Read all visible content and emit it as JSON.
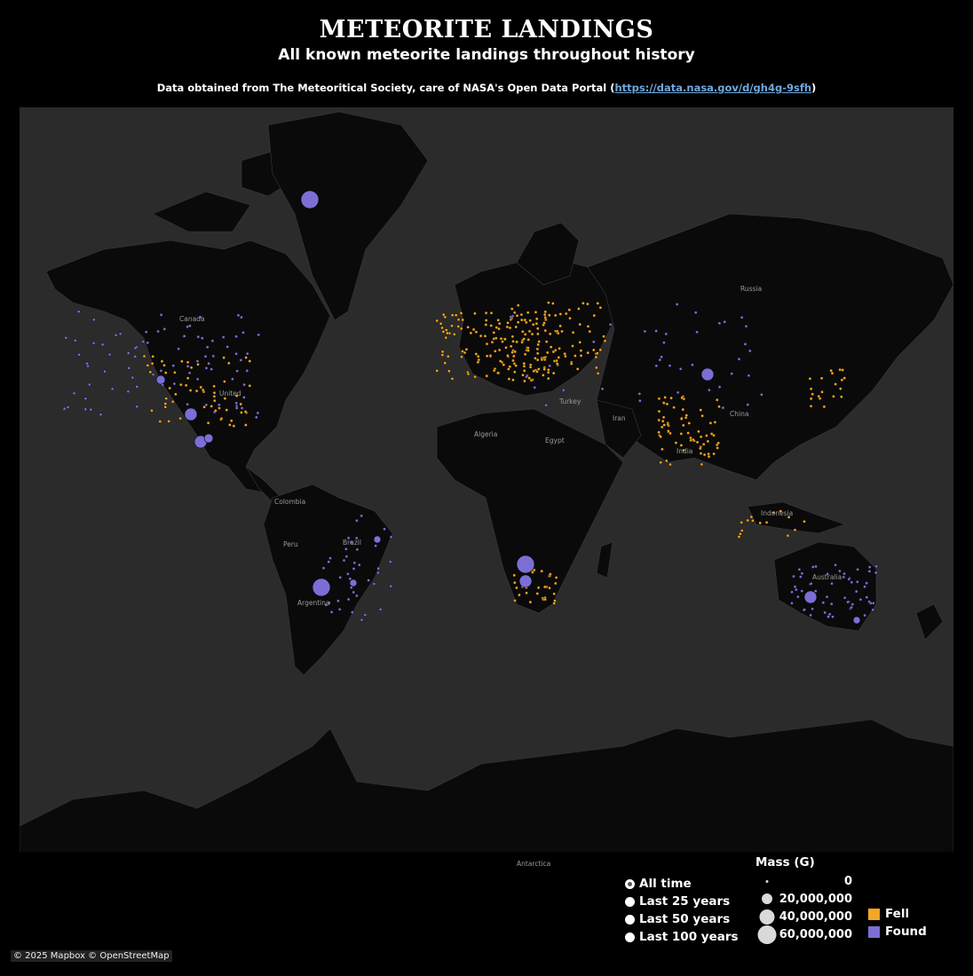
{
  "header": {
    "title": "METEORITE LANDINGS",
    "subtitle": "All known meteorite landings throughout history",
    "source_prefix": "Data obtained from The Meteoritical Society, care of NASA's Open Data Portal (",
    "source_link": "https://data.nasa.gov/d/gh4g-9sfh",
    "source_suffix": ")"
  },
  "map": {
    "labels": {
      "canada": "Canada",
      "russia": "Russia",
      "united": "United",
      "china": "China",
      "iran": "Iran",
      "turkey": "Turkey",
      "algeria": "Algeria",
      "egypt": "Egypt",
      "india": "India",
      "colombia": "Colombia",
      "peru": "Peru",
      "brazil": "Brazil",
      "argentina": "Argentina",
      "indonesia": "Indonesia",
      "australia": "Australia",
      "antarctica": "Antarctica"
    },
    "colors": {
      "fell": "#f5a623",
      "found": "#7b6fd6",
      "land": "#0a0a0a",
      "ocean": "#2b2b2b",
      "ice": "#000000"
    }
  },
  "filters": {
    "options": [
      "All time",
      "Last 25 years",
      "Last 50 years",
      "Last 100 years"
    ],
    "selected": "All time"
  },
  "legend": {
    "mass_title": "Mass (G)",
    "mass_values": [
      "0",
      "20,000,000",
      "40,000,000",
      "60,000,000"
    ],
    "categories": [
      {
        "label": "Fell",
        "color": "#f5a623"
      },
      {
        "label": "Found",
        "color": "#7b6fd6"
      }
    ]
  },
  "attribution": "© 2025 Mapbox  © OpenStreetMap"
}
